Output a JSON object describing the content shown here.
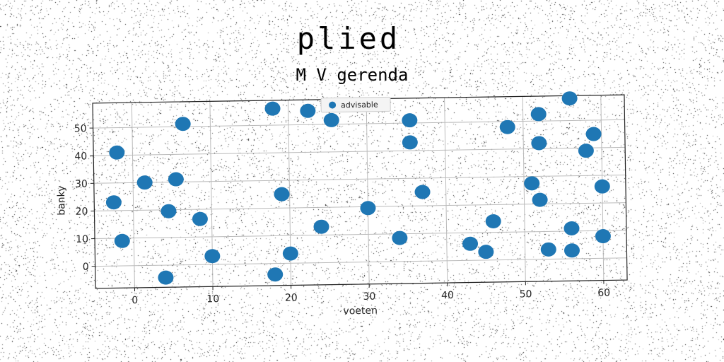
{
  "chart_data": {
    "type": "scatter",
    "title": "plied",
    "subtitle": "M V gerenda",
    "xlabel": "voeten",
    "ylabel": "banky",
    "xlim": [
      -5,
      63
    ],
    "ylim": [
      -8,
      59
    ],
    "xticks": [
      0,
      10,
      20,
      30,
      40,
      50,
      60
    ],
    "yticks": [
      0,
      10,
      20,
      30,
      40,
      50
    ],
    "grid": true,
    "legend_position": "top-center",
    "colors": {
      "series": "#1f77b4",
      "grid": "#bbbbbb",
      "axes": "#222222"
    },
    "series": [
      {
        "name": "advisable",
        "points": [
          {
            "x": -2,
            "y": 41
          },
          {
            "x": 6.5,
            "y": 51
          },
          {
            "x": 1.5,
            "y": 30
          },
          {
            "x": 5.5,
            "y": 31
          },
          {
            "x": -2.5,
            "y": 23
          },
          {
            "x": 4.5,
            "y": 19.5
          },
          {
            "x": 8.5,
            "y": 16.5
          },
          {
            "x": -1.5,
            "y": 9
          },
          {
            "x": 10,
            "y": 3
          },
          {
            "x": 4,
            "y": -4.5
          },
          {
            "x": 18,
            "y": 56
          },
          {
            "x": 22.5,
            "y": 55
          },
          {
            "x": 25.5,
            "y": 51.5
          },
          {
            "x": 19,
            "y": 25
          },
          {
            "x": 24,
            "y": 13
          },
          {
            "x": 20,
            "y": 3.5
          },
          {
            "x": 18,
            "y": -4
          },
          {
            "x": 30,
            "y": 19.5
          },
          {
            "x": 34,
            "y": 8.5
          },
          {
            "x": 35.5,
            "y": 51
          },
          {
            "x": 35.5,
            "y": 43
          },
          {
            "x": 37,
            "y": 25
          },
          {
            "x": 43,
            "y": 6
          },
          {
            "x": 45,
            "y": 3
          },
          {
            "x": 46,
            "y": 14
          },
          {
            "x": 48,
            "y": 48
          },
          {
            "x": 52,
            "y": 52.5
          },
          {
            "x": 52,
            "y": 42
          },
          {
            "x": 51,
            "y": 27.5
          },
          {
            "x": 52,
            "y": 21.5
          },
          {
            "x": 53,
            "y": 3.5
          },
          {
            "x": 56,
            "y": 58
          },
          {
            "x": 59,
            "y": 45
          },
          {
            "x": 58,
            "y": 39
          },
          {
            "x": 60,
            "y": 26
          },
          {
            "x": 56,
            "y": 11
          },
          {
            "x": 56,
            "y": 3
          },
          {
            "x": 60,
            "y": 8
          }
        ]
      }
    ]
  }
}
